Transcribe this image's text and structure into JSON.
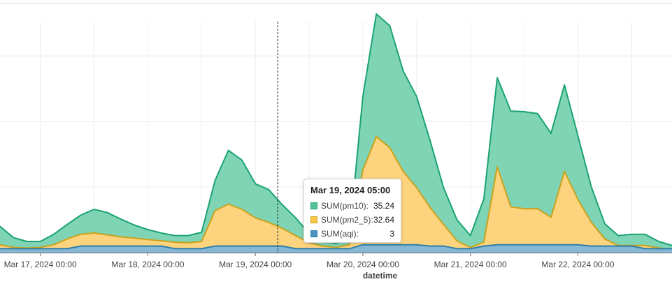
{
  "chart_data": {
    "type": "area",
    "xlabel": "datetime",
    "x_ticks": [
      "Mar 17, 2024 00:00",
      "Mar 18, 2024 00:00",
      "Mar 19, 2024 00:00",
      "Mar 20, 2024 00:00",
      "Mar 21, 2024 00:00",
      "Mar 22, 2024 00:00"
    ],
    "x_range": [
      "2024-03-16T15:00",
      "2024-03-22T21:00"
    ],
    "ylim": [
      0,
      38
    ],
    "stacked": false,
    "grid": true,
    "x_step_hours": 3,
    "x_start": "2024-03-16T15:00",
    "series": [
      {
        "name": "SUM(pm10)",
        "color": "#1aa371",
        "fill": "#7fd4b5",
        "values": [
          4.0,
          2.3,
          1.7,
          1.7,
          2.8,
          4.3,
          5.7,
          6.6,
          6.1,
          5.1,
          4.2,
          3.5,
          3.0,
          2.6,
          2.6,
          3.1,
          11.0,
          15.6,
          14.1,
          10.5,
          9.6,
          7.3,
          5.3,
          2.9,
          1.8,
          1.4,
          2.5,
          23.8,
          36.4,
          34.6,
          27.7,
          23.8,
          17.1,
          9.9,
          5.0,
          2.6,
          8.2,
          26.7,
          21.6,
          21.5,
          21.2,
          18.2,
          25.6,
          17.8,
          10.0,
          4.4,
          2.6,
          2.8,
          2.8,
          1.7,
          1.1,
          1.0,
          1.2,
          1.5,
          1.1,
          1.1,
          1.1,
          1.0,
          1.0,
          1.2,
          1.3,
          1.6,
          1.4,
          1.9,
          1.6
        ]
      },
      {
        "name": "SUM(pm2_5)",
        "color": "#c9a21d",
        "fill": "#fdd37e",
        "values": [
          1.2,
          0.8,
          0.7,
          0.8,
          1.2,
          2.1,
          2.8,
          3.0,
          2.7,
          2.4,
          2.2,
          2.0,
          1.8,
          1.6,
          1.5,
          1.7,
          6.4,
          7.4,
          6.6,
          5.3,
          4.6,
          3.7,
          2.6,
          1.5,
          1.0,
          0.8,
          1.2,
          12.6,
          17.7,
          16.0,
          12.4,
          9.9,
          6.9,
          4.3,
          1.8,
          0.8,
          1.6,
          13.1,
          7.0,
          6.7,
          6.7,
          5.4,
          12.4,
          8.1,
          4.6,
          2.1,
          1.1,
          1.1,
          1.1,
          0.7,
          0.5,
          0.4,
          0.5,
          0.6,
          0.5,
          0.5,
          0.5,
          0.4,
          0.4,
          0.5,
          0.6,
          0.8,
          0.8,
          1.1,
          0.8
        ]
      },
      {
        "name": "SUM(aqi)",
        "color": "#2e7faa",
        "fill": "#86b8d6",
        "values": [
          0.6,
          0.6,
          0.6,
          0.6,
          0.6,
          0.6,
          1.0,
          1.0,
          1.0,
          1.0,
          1.0,
          1.0,
          1.0,
          0.6,
          0.6,
          0.6,
          1.0,
          1.0,
          1.0,
          1.0,
          1.0,
          1.0,
          0.6,
          0.6,
          0.6,
          0.6,
          0.6,
          1.2,
          1.2,
          1.2,
          1.2,
          1.2,
          1.0,
          1.0,
          0.6,
          0.6,
          1.0,
          1.2,
          1.2,
          1.2,
          1.2,
          1.2,
          1.2,
          1.2,
          1.0,
          1.0,
          1.0,
          1.0,
          0.6,
          0.6,
          0.6,
          0.6,
          1.0,
          1.0,
          0.6,
          0.6,
          0.6,
          0.6,
          0.6,
          0.6,
          1.0,
          1.0,
          0.8,
          1.0,
          0.8
        ]
      }
    ],
    "cursor": {
      "x": "2024-03-19T05:00"
    },
    "tooltip": {
      "title": "Mar 19, 2024 05:00",
      "rows": [
        {
          "name": "SUM(pm10):",
          "value": "35.24",
          "swatch": "#52c497",
          "border": "#1aa371"
        },
        {
          "name": "SUM(pm2_5):",
          "value": "32.64",
          "swatch": "#fbc54a",
          "border": "#c9a21d"
        },
        {
          "name": "SUM(aqi):",
          "value": "3",
          "swatch": "#4c94bd",
          "border": "#2e7faa"
        }
      ]
    }
  }
}
